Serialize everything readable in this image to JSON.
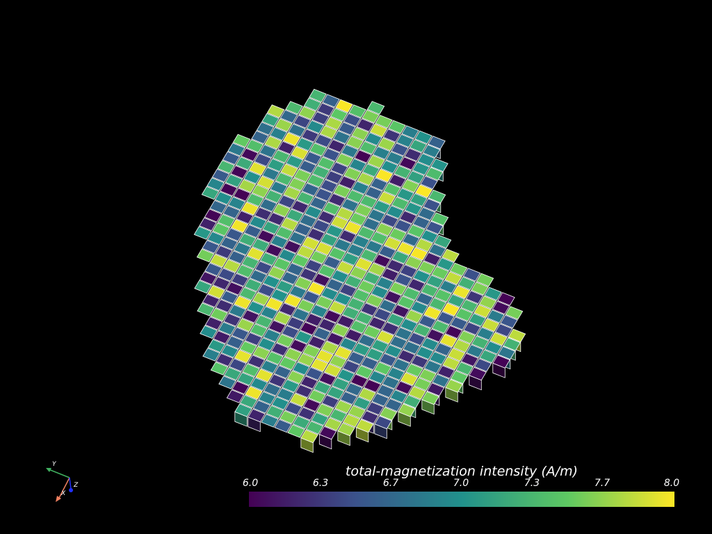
{
  "scalar_bar": {
    "title": "total-magnetization intensity (A/m)",
    "range": [
      6.0,
      8.0
    ],
    "colormap": "viridis",
    "tick_labels": [
      "6.0",
      "6.3",
      "6.7",
      "7.0",
      "7.3",
      "7.7",
      "8.0"
    ],
    "colors": [
      "#440154",
      "#3b528b",
      "#21918c",
      "#5ec962",
      "#fde725"
    ]
  },
  "orientation_axes": {
    "x_label": "X",
    "y_label": "Y",
    "z_label": "Z",
    "x_color": "#f08060",
    "y_color": "#40b060",
    "z_color": "#2030ff"
  },
  "background_color": "#000000",
  "mesh_edge_color": "#ffffff"
}
